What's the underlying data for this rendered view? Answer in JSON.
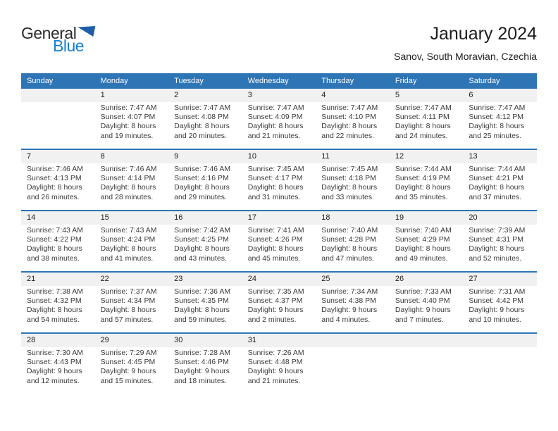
{
  "logo": {
    "text_general": "General",
    "text_blue": "Blue",
    "blue_color": "#1780D0",
    "triangle_color": "#1C5EA9"
  },
  "header": {
    "title": "January 2024",
    "subtitle": "Sanov, South Moravian, Czechia"
  },
  "colors": {
    "header_bg": "#2E75B6",
    "separator_line": "#2E75B6",
    "day_band_bg": "#F1F1F1",
    "header_text": "#FFFFFF",
    "body_text": "#3A3A3A"
  },
  "weekdays": [
    "Sunday",
    "Monday",
    "Tuesday",
    "Wednesday",
    "Thursday",
    "Friday",
    "Saturday"
  ],
  "weeks": [
    [
      null,
      {
        "day": "1",
        "sunrise": "Sunrise: 7:47 AM",
        "sunset": "Sunset: 4:07 PM",
        "daylight1": "Daylight: 8 hours",
        "daylight2": "and 19 minutes."
      },
      {
        "day": "2",
        "sunrise": "Sunrise: 7:47 AM",
        "sunset": "Sunset: 4:08 PM",
        "daylight1": "Daylight: 8 hours",
        "daylight2": "and 20 minutes."
      },
      {
        "day": "3",
        "sunrise": "Sunrise: 7:47 AM",
        "sunset": "Sunset: 4:09 PM",
        "daylight1": "Daylight: 8 hours",
        "daylight2": "and 21 minutes."
      },
      {
        "day": "4",
        "sunrise": "Sunrise: 7:47 AM",
        "sunset": "Sunset: 4:10 PM",
        "daylight1": "Daylight: 8 hours",
        "daylight2": "and 22 minutes."
      },
      {
        "day": "5",
        "sunrise": "Sunrise: 7:47 AM",
        "sunset": "Sunset: 4:11 PM",
        "daylight1": "Daylight: 8 hours",
        "daylight2": "and 24 minutes."
      },
      {
        "day": "6",
        "sunrise": "Sunrise: 7:47 AM",
        "sunset": "Sunset: 4:12 PM",
        "daylight1": "Daylight: 8 hours",
        "daylight2": "and 25 minutes."
      }
    ],
    [
      {
        "day": "7",
        "sunrise": "Sunrise: 7:46 AM",
        "sunset": "Sunset: 4:13 PM",
        "daylight1": "Daylight: 8 hours",
        "daylight2": "and 26 minutes."
      },
      {
        "day": "8",
        "sunrise": "Sunrise: 7:46 AM",
        "sunset": "Sunset: 4:14 PM",
        "daylight1": "Daylight: 8 hours",
        "daylight2": "and 28 minutes."
      },
      {
        "day": "9",
        "sunrise": "Sunrise: 7:46 AM",
        "sunset": "Sunset: 4:16 PM",
        "daylight1": "Daylight: 8 hours",
        "daylight2": "and 29 minutes."
      },
      {
        "day": "10",
        "sunrise": "Sunrise: 7:45 AM",
        "sunset": "Sunset: 4:17 PM",
        "daylight1": "Daylight: 8 hours",
        "daylight2": "and 31 minutes."
      },
      {
        "day": "11",
        "sunrise": "Sunrise: 7:45 AM",
        "sunset": "Sunset: 4:18 PM",
        "daylight1": "Daylight: 8 hours",
        "daylight2": "and 33 minutes."
      },
      {
        "day": "12",
        "sunrise": "Sunrise: 7:44 AM",
        "sunset": "Sunset: 4:19 PM",
        "daylight1": "Daylight: 8 hours",
        "daylight2": "and 35 minutes."
      },
      {
        "day": "13",
        "sunrise": "Sunrise: 7:44 AM",
        "sunset": "Sunset: 4:21 PM",
        "daylight1": "Daylight: 8 hours",
        "daylight2": "and 37 minutes."
      }
    ],
    [
      {
        "day": "14",
        "sunrise": "Sunrise: 7:43 AM",
        "sunset": "Sunset: 4:22 PM",
        "daylight1": "Daylight: 8 hours",
        "daylight2": "and 38 minutes."
      },
      {
        "day": "15",
        "sunrise": "Sunrise: 7:43 AM",
        "sunset": "Sunset: 4:24 PM",
        "daylight1": "Daylight: 8 hours",
        "daylight2": "and 41 minutes."
      },
      {
        "day": "16",
        "sunrise": "Sunrise: 7:42 AM",
        "sunset": "Sunset: 4:25 PM",
        "daylight1": "Daylight: 8 hours",
        "daylight2": "and 43 minutes."
      },
      {
        "day": "17",
        "sunrise": "Sunrise: 7:41 AM",
        "sunset": "Sunset: 4:26 PM",
        "daylight1": "Daylight: 8 hours",
        "daylight2": "and 45 minutes."
      },
      {
        "day": "18",
        "sunrise": "Sunrise: 7:40 AM",
        "sunset": "Sunset: 4:28 PM",
        "daylight1": "Daylight: 8 hours",
        "daylight2": "and 47 minutes."
      },
      {
        "day": "19",
        "sunrise": "Sunrise: 7:40 AM",
        "sunset": "Sunset: 4:29 PM",
        "daylight1": "Daylight: 8 hours",
        "daylight2": "and 49 minutes."
      },
      {
        "day": "20",
        "sunrise": "Sunrise: 7:39 AM",
        "sunset": "Sunset: 4:31 PM",
        "daylight1": "Daylight: 8 hours",
        "daylight2": "and 52 minutes."
      }
    ],
    [
      {
        "day": "21",
        "sunrise": "Sunrise: 7:38 AM",
        "sunset": "Sunset: 4:32 PM",
        "daylight1": "Daylight: 8 hours",
        "daylight2": "and 54 minutes."
      },
      {
        "day": "22",
        "sunrise": "Sunrise: 7:37 AM",
        "sunset": "Sunset: 4:34 PM",
        "daylight1": "Daylight: 8 hours",
        "daylight2": "and 57 minutes."
      },
      {
        "day": "23",
        "sunrise": "Sunrise: 7:36 AM",
        "sunset": "Sunset: 4:35 PM",
        "daylight1": "Daylight: 8 hours",
        "daylight2": "and 59 minutes."
      },
      {
        "day": "24",
        "sunrise": "Sunrise: 7:35 AM",
        "sunset": "Sunset: 4:37 PM",
        "daylight1": "Daylight: 9 hours",
        "daylight2": "and 2 minutes."
      },
      {
        "day": "25",
        "sunrise": "Sunrise: 7:34 AM",
        "sunset": "Sunset: 4:38 PM",
        "daylight1": "Daylight: 9 hours",
        "daylight2": "and 4 minutes."
      },
      {
        "day": "26",
        "sunrise": "Sunrise: 7:33 AM",
        "sunset": "Sunset: 4:40 PM",
        "daylight1": "Daylight: 9 hours",
        "daylight2": "and 7 minutes."
      },
      {
        "day": "27",
        "sunrise": "Sunrise: 7:31 AM",
        "sunset": "Sunset: 4:42 PM",
        "daylight1": "Daylight: 9 hours",
        "daylight2": "and 10 minutes."
      }
    ],
    [
      {
        "day": "28",
        "sunrise": "Sunrise: 7:30 AM",
        "sunset": "Sunset: 4:43 PM",
        "daylight1": "Daylight: 9 hours",
        "daylight2": "and 12 minutes."
      },
      {
        "day": "29",
        "sunrise": "Sunrise: 7:29 AM",
        "sunset": "Sunset: 4:45 PM",
        "daylight1": "Daylight: 9 hours",
        "daylight2": "and 15 minutes."
      },
      {
        "day": "30",
        "sunrise": "Sunrise: 7:28 AM",
        "sunset": "Sunset: 4:46 PM",
        "daylight1": "Daylight: 9 hours",
        "daylight2": "and 18 minutes."
      },
      {
        "day": "31",
        "sunrise": "Sunrise: 7:26 AM",
        "sunset": "Sunset: 4:48 PM",
        "daylight1": "Daylight: 9 hours",
        "daylight2": "and 21 minutes."
      },
      null,
      null,
      null
    ]
  ]
}
